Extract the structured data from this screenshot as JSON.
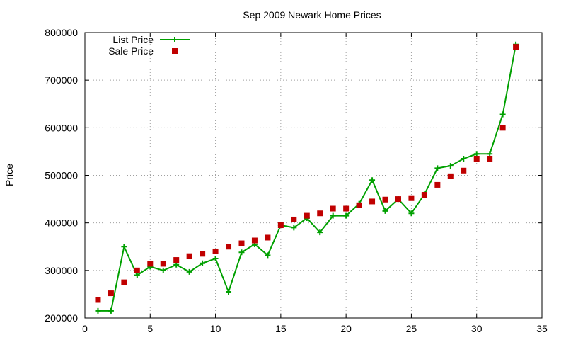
{
  "chart_data": {
    "type": "line",
    "title": "Sep 2009 Newark Home Prices",
    "xlabel": "",
    "ylabel": "Price",
    "xlim": [
      0,
      35
    ],
    "ylim": [
      200000,
      800000
    ],
    "xticks": [
      0,
      5,
      10,
      15,
      20,
      25,
      30,
      35
    ],
    "yticks": [
      200000,
      300000,
      400000,
      500000,
      600000,
      700000,
      800000
    ],
    "grid": true,
    "legend_position": "top-left",
    "x": [
      1,
      2,
      3,
      4,
      5,
      6,
      7,
      8,
      9,
      10,
      11,
      12,
      13,
      14,
      15,
      16,
      17,
      18,
      19,
      20,
      21,
      22,
      23,
      24,
      25,
      26,
      27,
      28,
      29,
      30,
      31,
      32,
      33
    ],
    "series": [
      {
        "name": "List Price",
        "style": "line-points",
        "color": "#00a000",
        "values": [
          215000,
          215000,
          350000,
          290000,
          308000,
          300000,
          312000,
          297000,
          315000,
          325000,
          255000,
          338000,
          355000,
          332000,
          395000,
          390000,
          410000,
          380000,
          415000,
          415000,
          440000,
          490000,
          425000,
          450000,
          420000,
          460000,
          515000,
          520000,
          535000,
          545000,
          545000,
          628000,
          775000
        ]
      },
      {
        "name": "Sale Price",
        "style": "points",
        "color": "#c00000",
        "values": [
          238000,
          252000,
          275000,
          300000,
          314000,
          314000,
          322000,
          330000,
          335000,
          340000,
          350000,
          357000,
          363000,
          369000,
          395000,
          407000,
          415000,
          420000,
          430000,
          430000,
          437000,
          445000,
          449000,
          450000,
          452000,
          459000,
          480000,
          498000,
          510000,
          535000,
          535000,
          600000,
          770000
        ]
      }
    ]
  }
}
